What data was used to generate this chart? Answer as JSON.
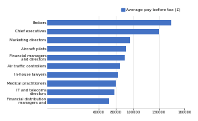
{
  "categories": [
    "Financial distribution\nmanagers and",
    "IT and telecoms\ndirectors",
    "Medical practitioners",
    "In-house lawyers",
    "Air traffic controllers",
    "Financial managers\nand directors",
    "Aircraft pilots",
    "Marketing directors",
    "Chief executives",
    "Brokers"
  ],
  "values": [
    72000,
    78000,
    80000,
    82000,
    85000,
    90000,
    92000,
    97000,
    130000,
    145000
  ],
  "bar_color": "#4472c4",
  "legend_label": "Average pay before tax (£)",
  "xlim": [
    0,
    160000
  ],
  "xtick_vals": [
    60000,
    80000,
    100000,
    130000,
    160000
  ],
  "xtick_labels": [
    "60000",
    "80000",
    "100000",
    "130000",
    "160000"
  ],
  "background_color": "#ffffff",
  "bar_height": 0.65,
  "label_fontsize": 4.0,
  "tick_fontsize": 3.8,
  "legend_fontsize": 4.2
}
